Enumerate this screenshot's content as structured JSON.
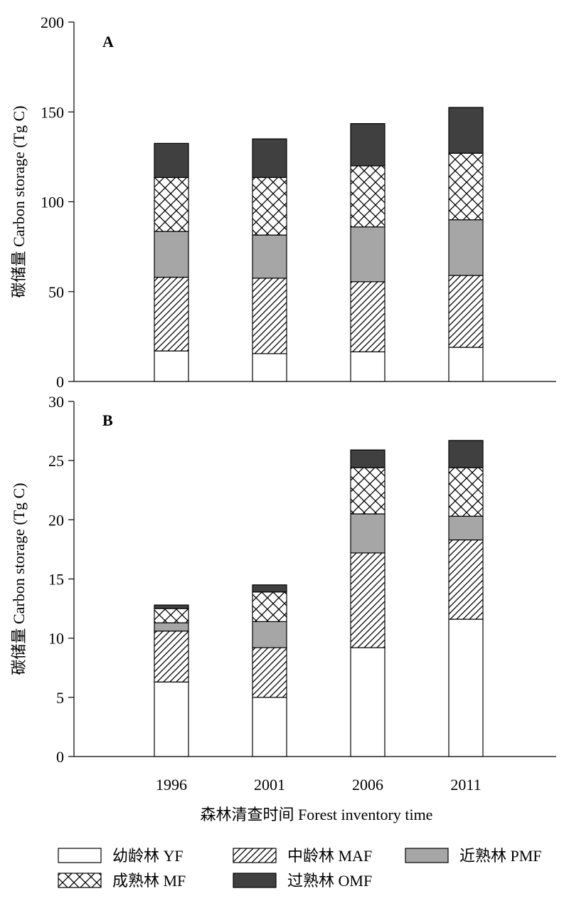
{
  "chart_data": [
    {
      "type": "bar",
      "stacked": true,
      "panel_label": "A",
      "ylabel": "碳储量 Carbon storage (Tg C)",
      "ylim": [
        0,
        200
      ],
      "yticks": [
        0,
        50,
        100,
        150,
        200
      ],
      "categories": [
        "1996",
        "2001",
        "2006",
        "2011"
      ],
      "series": [
        {
          "key": "yf",
          "name": "幼龄林  YF",
          "fill": "#ffffff",
          "pattern": "none",
          "values": [
            17,
            15.5,
            16.5,
            19
          ]
        },
        {
          "key": "maf",
          "name": "中龄林  MAF",
          "fill": "#ffffff",
          "pattern": "hatch",
          "values": [
            41,
            42,
            39,
            40
          ]
        },
        {
          "key": "pmf",
          "name": "近熟林  PMF",
          "fill": "#a6a6a6",
          "pattern": "none",
          "values": [
            25.5,
            24,
            30.5,
            31
          ]
        },
        {
          "key": "mf",
          "name": "成熟林  MF",
          "fill": "#ffffff",
          "pattern": "cross",
          "values": [
            30,
            32,
            34,
            37
          ]
        },
        {
          "key": "omf",
          "name": "过熟林  OMF",
          "fill": "#404040",
          "pattern": "none",
          "values": [
            19,
            21.5,
            23.5,
            25.5
          ]
        }
      ]
    },
    {
      "type": "bar",
      "stacked": true,
      "panel_label": "B",
      "ylabel": "碳储量 Carbon storage (Tg C)",
      "ylim": [
        0,
        30
      ],
      "yticks": [
        0,
        5,
        10,
        15,
        20,
        25,
        30
      ],
      "categories": [
        "1996",
        "2001",
        "2006",
        "2011"
      ],
      "series": [
        {
          "key": "yf",
          "name": "幼龄林  YF",
          "fill": "#ffffff",
          "pattern": "none",
          "values": [
            6.3,
            5.0,
            9.2,
            11.6
          ]
        },
        {
          "key": "maf",
          "name": "中龄林  MAF",
          "fill": "#ffffff",
          "pattern": "hatch",
          "values": [
            4.3,
            4.2,
            8.0,
            6.7
          ]
        },
        {
          "key": "pmf",
          "name": "近熟林  PMF",
          "fill": "#a6a6a6",
          "pattern": "none",
          "values": [
            0.7,
            2.2,
            3.3,
            2.0
          ]
        },
        {
          "key": "mf",
          "name": "成熟林  MF",
          "fill": "#ffffff",
          "pattern": "cross",
          "values": [
            1.2,
            2.5,
            3.9,
            4.1
          ]
        },
        {
          "key": "omf",
          "name": "过熟林  OMF",
          "fill": "#404040",
          "pattern": "none",
          "values": [
            0.3,
            0.6,
            1.5,
            2.3
          ]
        }
      ]
    }
  ],
  "xlabel": "森林清查时间  Forest inventory time",
  "legend": [
    {
      "key": "yf",
      "label": "幼龄林  YF"
    },
    {
      "key": "maf",
      "label": "中龄林  MAF"
    },
    {
      "key": "pmf",
      "label": "近熟林  PMF"
    },
    {
      "key": "mf",
      "label": "成熟林  MF"
    },
    {
      "key": "omf",
      "label": "过熟林  OMF"
    }
  ]
}
